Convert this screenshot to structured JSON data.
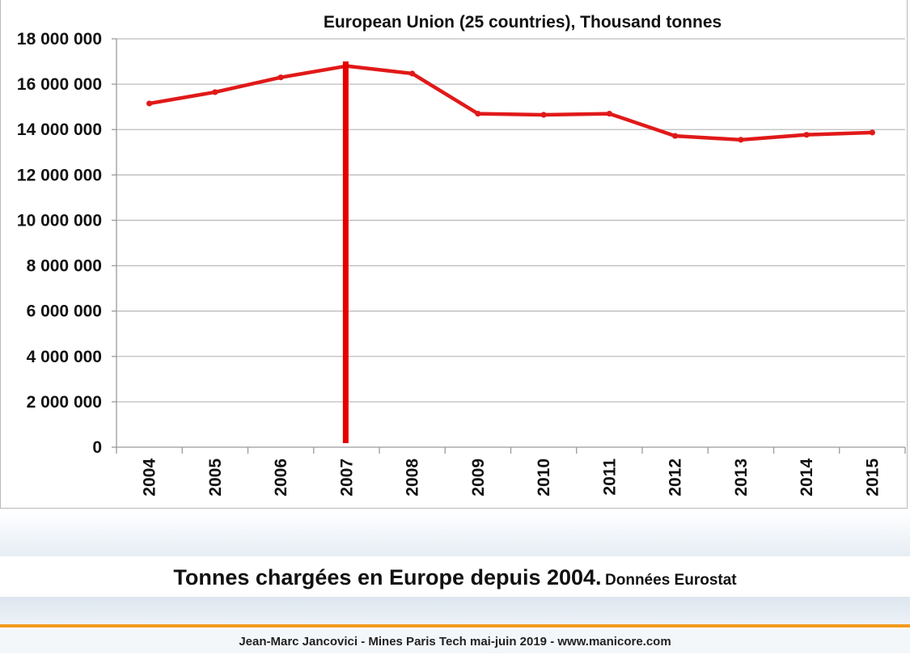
{
  "chart_data": {
    "type": "line",
    "title": "European Union (25 countries), Thousand tonnes",
    "xlabel": "",
    "ylabel": "",
    "categories": [
      "2004",
      "2005",
      "2006",
      "2007",
      "2008",
      "2009",
      "2010",
      "2011",
      "2012",
      "2013",
      "2014",
      "2015"
    ],
    "series": [
      {
        "values": [
          15150000,
          15650000,
          16300000,
          16800000,
          16470000,
          14700000,
          14650000,
          14700000,
          13720000,
          13550000,
          13770000,
          13870000
        ],
        "color": "#e11919"
      }
    ],
    "ylim": [
      0,
      18000000
    ],
    "yticks": [
      0,
      2000000,
      4000000,
      6000000,
      8000000,
      10000000,
      12000000,
      14000000,
      16000000,
      18000000
    ],
    "ytick_labels": [
      "0",
      "2 000 000",
      "4 000 000",
      "6 000 000",
      "8 000 000",
      "10 000 000",
      "12 000 000",
      "14 000 000",
      "16 000 000",
      "18 000 000"
    ],
    "marker_line": {
      "category": "2007",
      "color": "#e60000"
    },
    "grid": true,
    "legend": "none"
  },
  "caption": {
    "main": "Tonnes chargées en Europe depuis 2004.",
    "sub": "Données Eurostat"
  },
  "footer": {
    "credit": "Jean-Marc Jancovici - Mines Paris Tech mai-juin 2019 - www.manicore.com"
  },
  "colors": {
    "line": "#e11919",
    "highlight": "#e60000",
    "grid": "#bdbdbd",
    "accent_rule": "#f29a1f"
  }
}
